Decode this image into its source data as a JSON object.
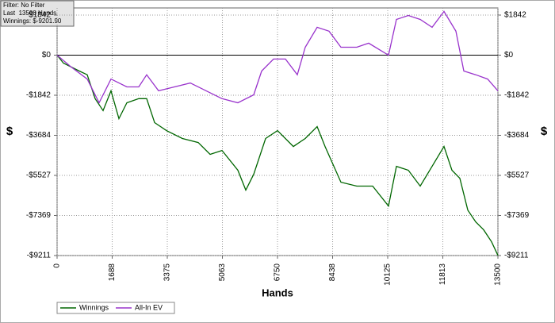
{
  "info_box": {
    "lines": [
      "Filter: No Filter",
      "Last  13500 Hands",
      "Winnings: $-9201.90"
    ]
  },
  "chart_data": {
    "type": "line",
    "x_label": "Hands",
    "y_label": "$",
    "y2_label": "$",
    "xlim": [
      0,
      13500
    ],
    "xticks": [
      0,
      1688,
      3375,
      5063,
      6750,
      8438,
      10125,
      11813,
      13500
    ],
    "ylim": [
      -9211,
      2170
    ],
    "yticks": [
      {
        "value": -9211,
        "label": "-$9211"
      },
      {
        "value": -7369,
        "label": "-$7369"
      },
      {
        "value": -5527,
        "label": "-$5527"
      },
      {
        "value": -3684,
        "label": "-$3684"
      },
      {
        "value": -1842,
        "label": "-$1842"
      },
      {
        "value": 0,
        "label": "$0"
      },
      {
        "value": 1842,
        "label": "$1842"
      }
    ],
    "grid": true,
    "legend": "bottom-left",
    "series": [
      {
        "name": "Winnings",
        "color": "#006600",
        "x": [
          0,
          194,
          680,
          923,
          1165,
          1408,
          1651,
          1894,
          2137,
          2501,
          2744,
          2986,
          3351,
          3836,
          4322,
          4686,
          5050,
          5536,
          5779,
          6022,
          6386,
          6750,
          7235,
          7600,
          7964,
          8207,
          8692,
          9178,
          9663,
          10149,
          10392,
          10756,
          11120,
          11484,
          11849,
          12091,
          12334,
          12577,
          12820,
          13063,
          13306,
          13500
        ],
        "values": [
          0,
          -365,
          -730,
          -900,
          -2000,
          -2550,
          -1640,
          -2920,
          -2190,
          -2000,
          -2000,
          -3100,
          -3470,
          -3830,
          -4015,
          -4560,
          -4380,
          -5290,
          -6200,
          -5475,
          -3830,
          -3470,
          -4200,
          -3830,
          -3285,
          -4200,
          -5840,
          -6020,
          -6020,
          -6935,
          -5110,
          -5290,
          -6020,
          -5110,
          -4200,
          -5290,
          -5660,
          -7120,
          -7665,
          -8030,
          -8580,
          -9201.9
        ]
      },
      {
        "name": "All-In EV",
        "color": "#9933cc",
        "x": [
          0,
          437,
          923,
          1287,
          1651,
          2137,
          2501,
          2744,
          3108,
          3593,
          4079,
          4565,
          5050,
          5536,
          6022,
          6264,
          6629,
          6993,
          7357,
          7600,
          7964,
          8328,
          8692,
          9178,
          9542,
          10149,
          10392,
          10756,
          11120,
          11484,
          11849,
          12213,
          12455,
          12820,
          13184,
          13500
        ],
        "values": [
          0,
          -550,
          -1100,
          -2190,
          -1100,
          -1460,
          -1460,
          -900,
          -1640,
          -1460,
          -1280,
          -1640,
          -2000,
          -2190,
          -1825,
          -730,
          -180,
          -180,
          -900,
          365,
          1280,
          1100,
          365,
          365,
          550,
          0,
          1640,
          1825,
          1640,
          1280,
          2010,
          1100,
          -730,
          -900,
          -1100,
          -1640
        ]
      }
    ]
  }
}
